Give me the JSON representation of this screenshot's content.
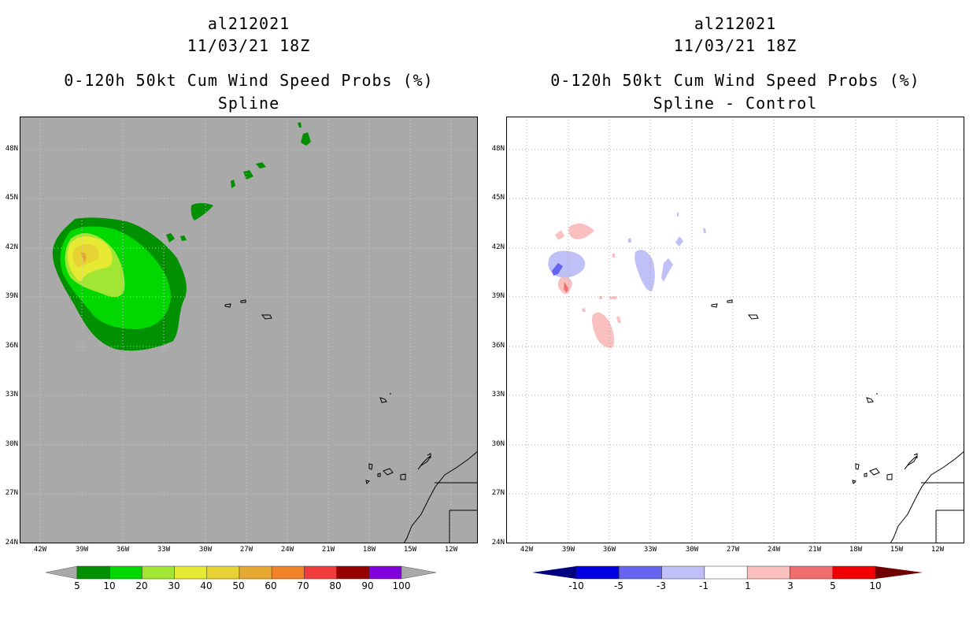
{
  "left_panel": {
    "storm_id": "al212021",
    "datetime": "11/03/21 18Z",
    "product": "0-120h 50kt Cum Wind Speed Probs (%)",
    "subtitle": "Spline",
    "colorbar_labels": [
      "5",
      "10",
      "20",
      "30",
      "40",
      "50",
      "60",
      "70",
      "80",
      "90",
      "100"
    ],
    "colorbar_colors": [
      "#009000",
      "#00d800",
      "#a0e632",
      "#e6ea32",
      "#e6d232",
      "#e6aa32",
      "#f08228",
      "#f03c3c",
      "#960000",
      "#8200dc"
    ],
    "land_color": "#a9a9a9"
  },
  "right_panel": {
    "storm_id": "al212021",
    "datetime": "11/03/21 18Z",
    "product": "0-120h 50kt Cum Wind Speed Probs (%)",
    "subtitle": "Spline - Control",
    "colorbar_labels": [
      "-10",
      "-5",
      "-3",
      "-1",
      "1",
      "3",
      "5",
      "10"
    ],
    "colorbar_colors": [
      "#0000e0",
      "#6464f0",
      "#c0c0f8",
      "#ffffff",
      "#fac0c0",
      "#f06e6e",
      "#f00000"
    ],
    "end_colors": [
      "#000080",
      "#700000"
    ]
  },
  "map": {
    "lat_labels": [
      "48N",
      "45N",
      "42N",
      "39N",
      "36N",
      "33N",
      "30N",
      "27N",
      "24N"
    ],
    "lon_labels": [
      "42W",
      "39W",
      "36W",
      "33W",
      "30W",
      "27W",
      "24W",
      "21W",
      "18W",
      "15W",
      "12W"
    ]
  }
}
